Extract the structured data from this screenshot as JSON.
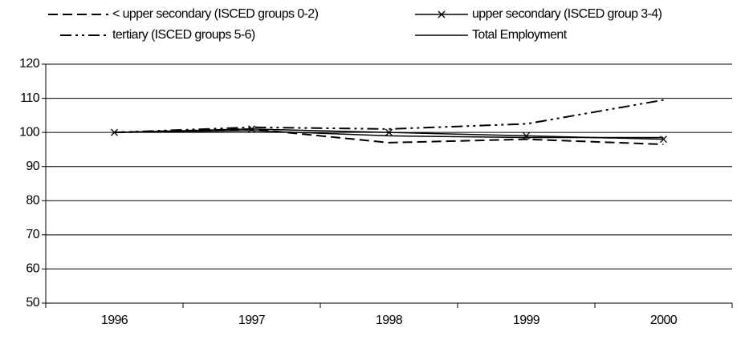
{
  "chart_data": {
    "type": "line",
    "categories": [
      "1996",
      "1997",
      "1998",
      "1999",
      "2000"
    ],
    "series": [
      {
        "name": "< upper secondary (ISCED groups 0-2)",
        "color": "#000000",
        "values": [
          100,
          101,
          97,
          98,
          96.5
        ]
      },
      {
        "name": "upper secondary (ISCED group 3-4)",
        "color": "#000000",
        "values": [
          100,
          101,
          100,
          99,
          98
        ]
      },
      {
        "name": "tertiary (ISCED groups 5-6)",
        "color": "#000000",
        "values": [
          100,
          101.5,
          101,
          102.5,
          109.5
        ]
      },
      {
        "name": "Total Employment",
        "color": "#000000",
        "values": [
          100,
          100.5,
          99,
          98.5,
          98.5
        ]
      }
    ],
    "ylim": [
      50,
      120
    ],
    "yticks": [
      50,
      60,
      70,
      80,
      90,
      100,
      110,
      120
    ],
    "grid": true
  }
}
